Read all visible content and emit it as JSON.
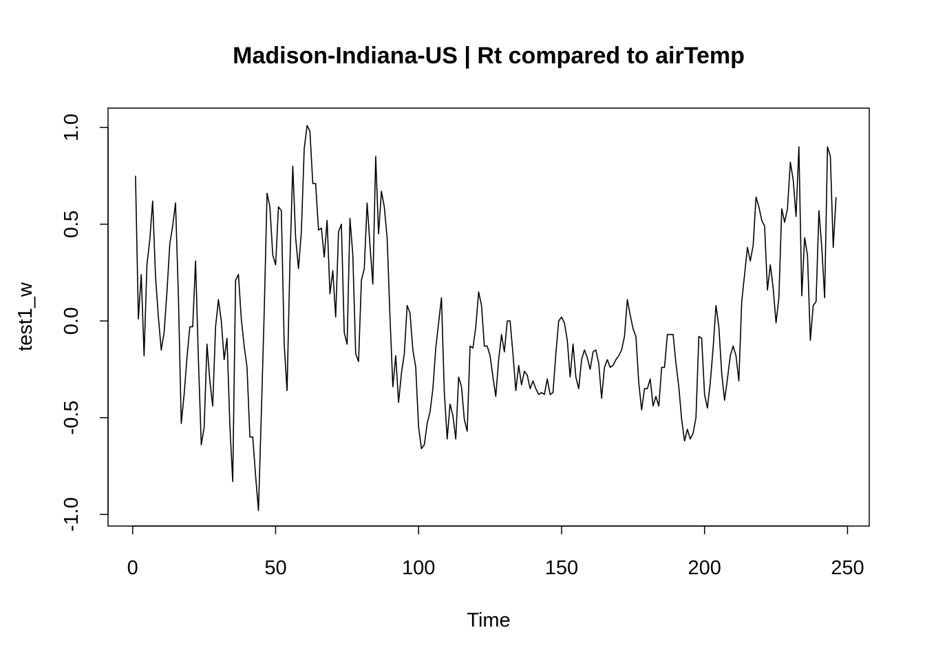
{
  "chart_data": {
    "type": "line",
    "title": "Madison-Indiana-US | Rt compared to airTemp",
    "xlabel": "Time",
    "ylabel": "test1_w",
    "xlim": [
      -8.6,
      257.6
    ],
    "ylim": [
      -1.06,
      1.1
    ],
    "xticks": [
      0,
      50,
      100,
      150,
      200,
      250
    ],
    "xtick_labels": [
      "0",
      "50",
      "100",
      "150",
      "200",
      "250"
    ],
    "yticks": [
      -1.0,
      -0.5,
      0.0,
      0.5,
      1.0
    ],
    "ytick_labels": [
      "-1.0",
      "-0.5",
      "0.0",
      "0.5",
      "1.0"
    ],
    "grid": false,
    "line_color": "#000000",
    "x_start": 1,
    "series": [
      {
        "values": [
          0.75,
          0.01,
          0.24,
          -0.18,
          0.29,
          0.42,
          0.62,
          0.23,
          0.02,
          -0.15,
          -0.06,
          0.15,
          0.4,
          0.49,
          0.61,
          0.13,
          -0.53,
          -0.38,
          -0.19,
          -0.03,
          -0.03,
          0.31,
          -0.2,
          -0.64,
          -0.55,
          -0.12,
          -0.31,
          -0.44,
          -0.03,
          0.11,
          0.0,
          -0.2,
          -0.09,
          -0.54,
          -0.83,
          0.21,
          0.24,
          0.01,
          -0.13,
          -0.24,
          -0.6,
          -0.6,
          -0.8,
          -0.98,
          -0.48,
          0.04,
          0.66,
          0.59,
          0.34,
          0.29,
          0.59,
          0.57,
          -0.12,
          -0.36,
          0.3,
          0.8,
          0.43,
          0.27,
          0.46,
          0.89,
          1.01,
          0.98,
          0.71,
          0.71,
          0.47,
          0.48,
          0.33,
          0.52,
          0.14,
          0.26,
          0.02,
          0.46,
          0.5,
          -0.06,
          -0.12,
          0.53,
          0.34,
          -0.17,
          -0.21,
          0.21,
          0.27,
          0.61,
          0.39,
          0.19,
          0.85,
          0.45,
          0.67,
          0.59,
          0.43,
          0.02,
          -0.34,
          -0.18,
          -0.42,
          -0.27,
          -0.17,
          0.08,
          0.04,
          -0.15,
          -0.24,
          -0.55,
          -0.66,
          -0.64,
          -0.53,
          -0.47,
          -0.35,
          -0.14,
          -0.01,
          0.12,
          -0.37,
          -0.61,
          -0.43,
          -0.49,
          -0.61,
          -0.29,
          -0.34,
          -0.51,
          -0.57,
          -0.13,
          -0.14,
          -0.03,
          0.15,
          0.08,
          -0.13,
          -0.13,
          -0.18,
          -0.29,
          -0.39,
          -0.2,
          -0.07,
          -0.16,
          0.0,
          0.0,
          -0.17,
          -0.36,
          -0.23,
          -0.33,
          -0.26,
          -0.28,
          -0.35,
          -0.31,
          -0.35,
          -0.38,
          -0.37,
          -0.38,
          -0.3,
          -0.38,
          -0.37,
          -0.17,
          0.0,
          0.02,
          -0.01,
          -0.1,
          -0.29,
          -0.12,
          -0.29,
          -0.35,
          -0.2,
          -0.15,
          -0.19,
          -0.25,
          -0.16,
          -0.15,
          -0.22,
          -0.4,
          -0.24,
          -0.2,
          -0.24,
          -0.23,
          -0.2,
          -0.18,
          -0.15,
          -0.08,
          0.11,
          0.03,
          -0.04,
          -0.08,
          -0.32,
          -0.46,
          -0.35,
          -0.35,
          -0.3,
          -0.44,
          -0.39,
          -0.44,
          -0.24,
          -0.24,
          -0.07,
          -0.07,
          -0.07,
          -0.22,
          -0.34,
          -0.51,
          -0.62,
          -0.56,
          -0.61,
          -0.58,
          -0.5,
          -0.08,
          -0.09,
          -0.38,
          -0.45,
          -0.32,
          -0.14,
          0.08,
          -0.03,
          -0.27,
          -0.41,
          -0.3,
          -0.18,
          -0.13,
          -0.18,
          -0.31,
          0.1,
          0.24,
          0.38,
          0.31,
          0.39,
          0.64,
          0.59,
          0.52,
          0.49,
          0.16,
          0.29,
          0.17,
          -0.01,
          0.12,
          0.58,
          0.51,
          0.58,
          0.82,
          0.73,
          0.54,
          0.9,
          0.13,
          0.43,
          0.34,
          -0.1,
          0.08,
          0.1,
          0.57,
          0.38,
          0.12,
          0.9,
          0.85,
          0.38,
          0.64
        ]
      }
    ]
  }
}
